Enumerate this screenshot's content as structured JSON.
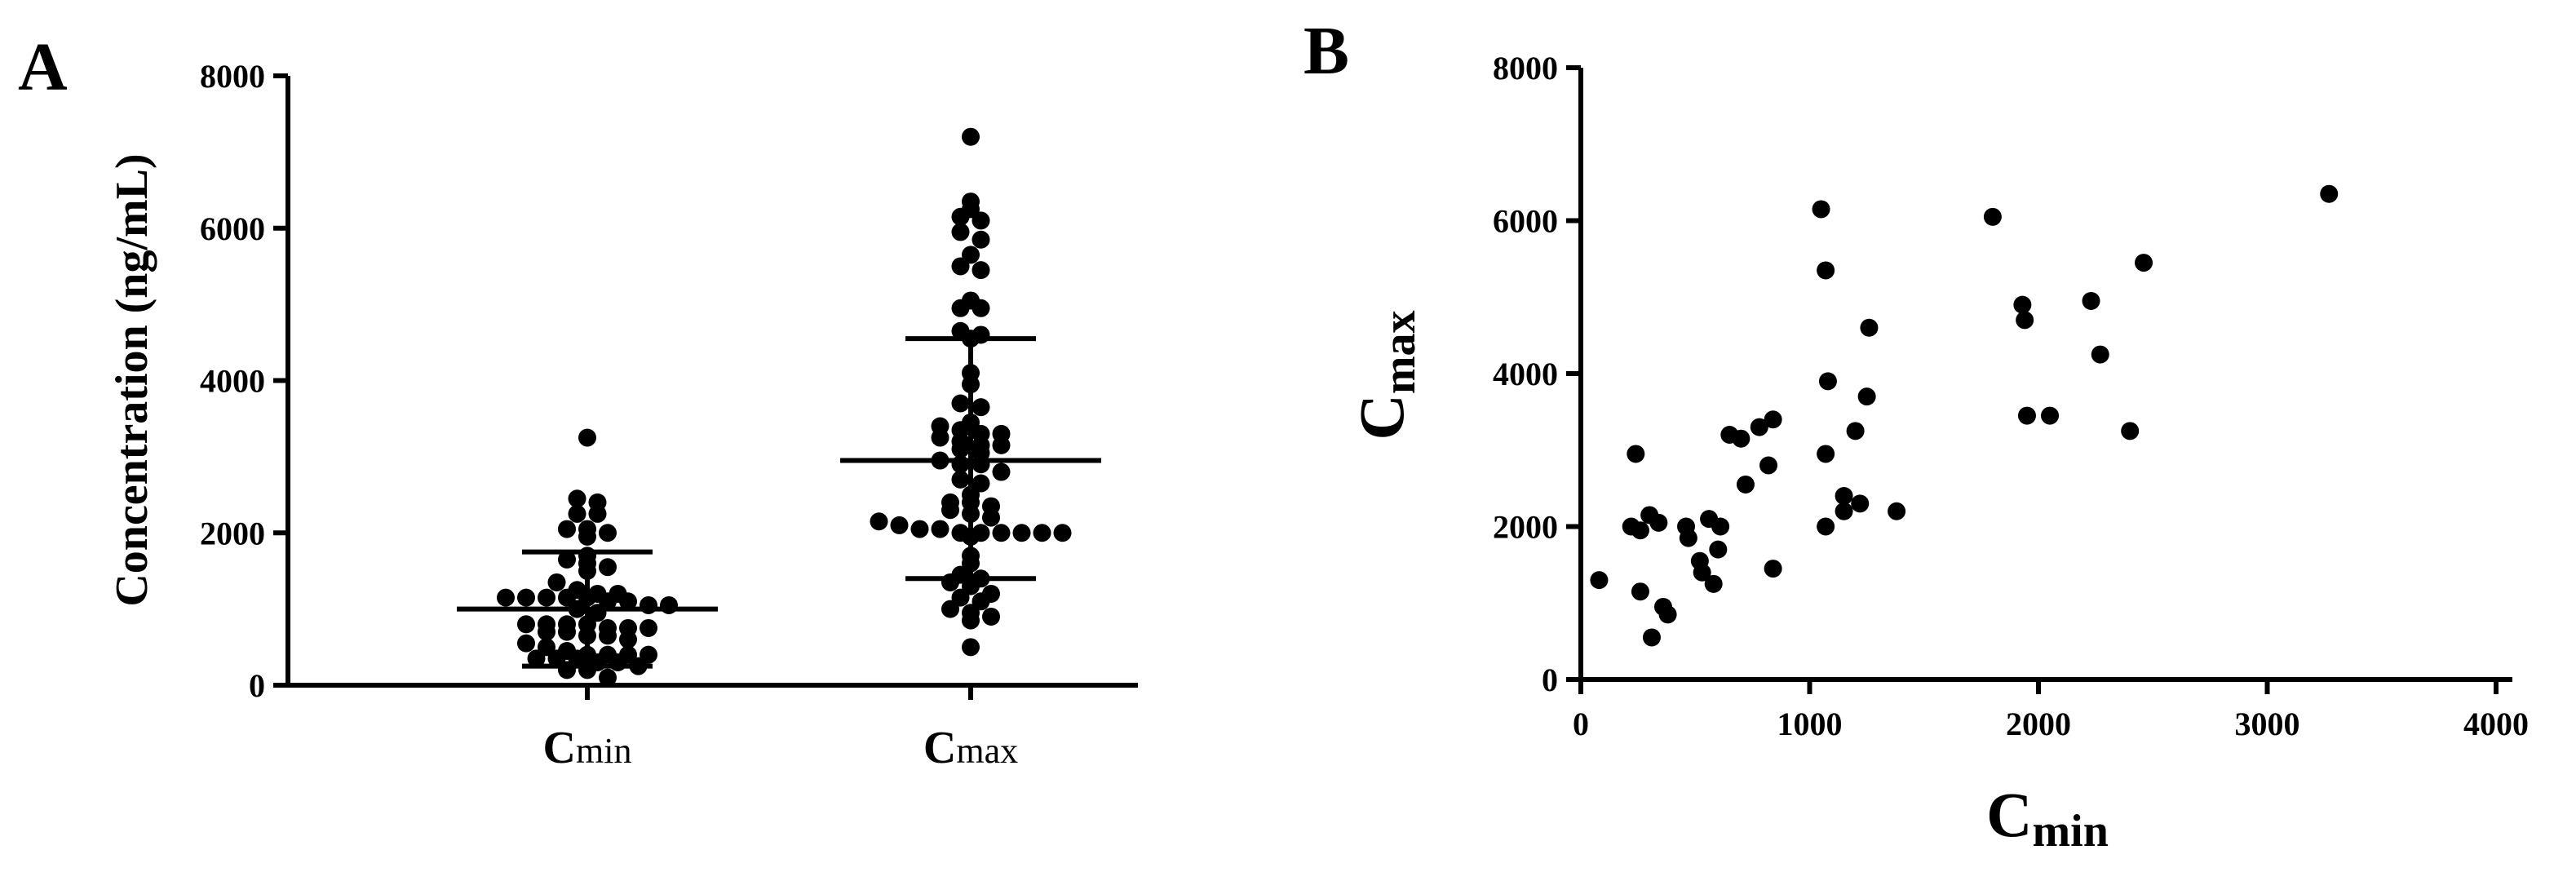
{
  "panels": {
    "a_letter": "A",
    "b_letter": "B"
  },
  "chart_data": [
    {
      "type": "scatter",
      "subtype": "dot-plot with mean ± SD",
      "panel": "A",
      "ylabel": "Concentration (ng/mL)",
      "ylim": [
        0,
        8000
      ],
      "yticks": [
        0,
        2000,
        4000,
        6000,
        8000
      ],
      "categories": [
        {
          "big": "C",
          "small": "min"
        },
        {
          "big": "C",
          "small": "max"
        }
      ],
      "series": [
        {
          "category_index": 0,
          "mean": 1000,
          "sd_low": 250,
          "sd_high": 1750,
          "values": [
            3250,
            2450,
            2400,
            2250,
            2250,
            2050,
            2050,
            2000,
            1950,
            1700,
            1650,
            1600,
            1550,
            1500,
            1350,
            1250,
            1200,
            1200,
            1150,
            1150,
            1150,
            1150,
            1150,
            1100,
            1100,
            1050,
            1050,
            1000,
            950,
            800,
            800,
            800,
            800,
            750,
            750,
            750,
            700,
            700,
            650,
            650,
            600,
            550,
            500,
            450,
            400,
            400,
            400,
            400,
            350,
            350,
            350,
            300,
            300,
            250,
            200,
            200,
            100
          ]
        },
        {
          "category_index": 1,
          "mean": 2950,
          "sd_low": 1400,
          "sd_high": 4550,
          "values": [
            7200,
            6350,
            6250,
            6150,
            6100,
            5950,
            5850,
            5650,
            5500,
            5450,
            5050,
            4950,
            4950,
            4650,
            4600,
            4550,
            4100,
            3950,
            3700,
            3650,
            3450,
            3400,
            3350,
            3300,
            3300,
            3250,
            3200,
            3150,
            3150,
            3100,
            3050,
            2950,
            2900,
            2900,
            2800,
            2700,
            2650,
            2500,
            2400,
            2400,
            2350,
            2300,
            2250,
            2200,
            2150,
            2100,
            2050,
            2050,
            2000,
            2000,
            2000,
            2000,
            2000,
            2000,
            1950,
            1700,
            1600,
            1450,
            1400,
            1350,
            1300,
            1200,
            1150,
            1100,
            1000,
            950,
            900,
            850,
            500
          ]
        }
      ]
    },
    {
      "type": "scatter",
      "panel": "B",
      "xlabel": {
        "big": "C",
        "small": "min"
      },
      "ylabel": {
        "big": "C",
        "small": "max"
      },
      "xlim": [
        0,
        4000
      ],
      "ylim": [
        0,
        8000
      ],
      "xticks": [
        0,
        1000,
        2000,
        3000,
        4000
      ],
      "yticks": [
        0,
        2000,
        4000,
        6000,
        8000
      ],
      "points": [
        [
          80,
          1300
        ],
        [
          220,
          2000
        ],
        [
          260,
          1950
        ],
        [
          240,
          2950
        ],
        [
          260,
          1150
        ],
        [
          300,
          2150
        ],
        [
          310,
          550
        ],
        [
          340,
          2050
        ],
        [
          360,
          950
        ],
        [
          380,
          850
        ],
        [
          460,
          2000
        ],
        [
          470,
          1850
        ],
        [
          520,
          1550
        ],
        [
          530,
          1400
        ],
        [
          560,
          2100
        ],
        [
          580,
          1250
        ],
        [
          600,
          1700
        ],
        [
          610,
          2000
        ],
        [
          650,
          3200
        ],
        [
          700,
          3150
        ],
        [
          720,
          2550
        ],
        [
          780,
          3300
        ],
        [
          820,
          2800
        ],
        [
          840,
          3400
        ],
        [
          840,
          1450
        ],
        [
          1050,
          6150
        ],
        [
          1070,
          5350
        ],
        [
          1080,
          3900
        ],
        [
          1070,
          2950
        ],
        [
          1070,
          2000
        ],
        [
          1150,
          2400
        ],
        [
          1150,
          2200
        ],
        [
          1200,
          3250
        ],
        [
          1220,
          2300
        ],
        [
          1250,
          3700
        ],
        [
          1260,
          4600
        ],
        [
          1380,
          2200
        ],
        [
          1800,
          6050
        ],
        [
          1930,
          4900
        ],
        [
          1940,
          4700
        ],
        [
          1950,
          3450
        ],
        [
          2050,
          3450
        ],
        [
          2230,
          4950
        ],
        [
          2270,
          4250
        ],
        [
          2400,
          3250
        ],
        [
          2460,
          5450
        ],
        [
          3270,
          6350
        ]
      ]
    }
  ]
}
